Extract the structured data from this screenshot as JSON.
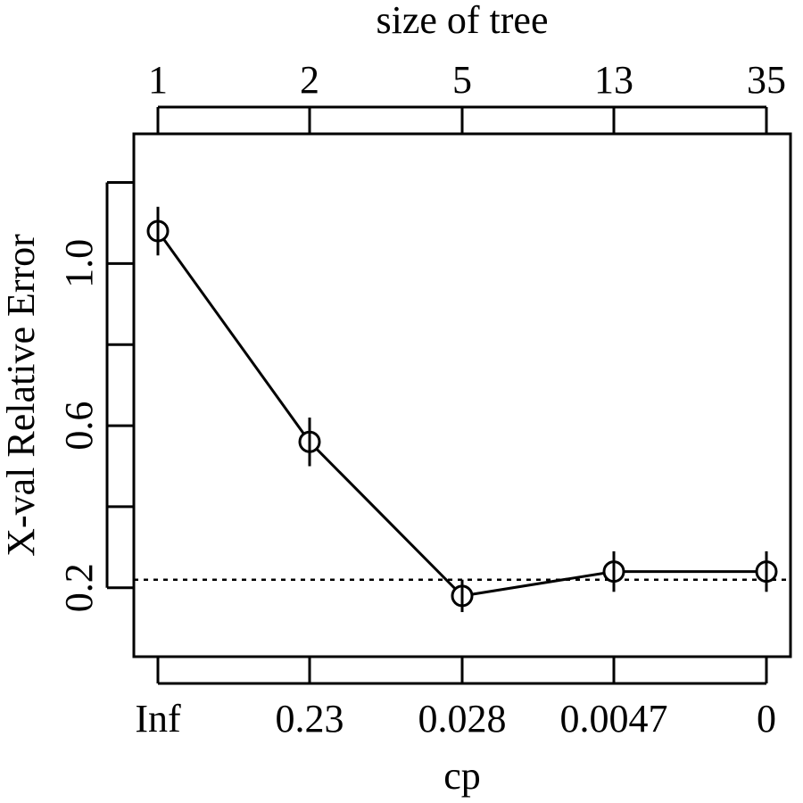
{
  "chart_data": {
    "type": "line",
    "title": "",
    "xlabel": "cp",
    "ylabel": "X-val Relative Error",
    "top_axis_label": "size of tree",
    "categories": [
      "Inf",
      "0.23",
      "0.028",
      "0.0047",
      "0"
    ],
    "top_categories": [
      "1",
      "2",
      "5",
      "13",
      "35"
    ],
    "series": [
      {
        "name": "X-val Relative Error",
        "values": [
          1.08,
          0.56,
          0.18,
          0.24,
          0.24
        ],
        "error_bars": [
          [
            1.02,
            1.14
          ],
          [
            0.5,
            0.62
          ],
          [
            0.14,
            0.22
          ],
          [
            0.19,
            0.29
          ],
          [
            0.19,
            0.29
          ]
        ]
      }
    ],
    "reference_line": {
      "value": 0.22,
      "style": "dotted"
    },
    "y_ticks": [
      0.2,
      0.4,
      0.6,
      0.8,
      1.0,
      1.2
    ],
    "y_tick_labels": [
      "0.2",
      "",
      "0.6",
      "",
      "1.0",
      ""
    ],
    "ylim": [
      0.03,
      1.32
    ],
    "grid": false
  }
}
